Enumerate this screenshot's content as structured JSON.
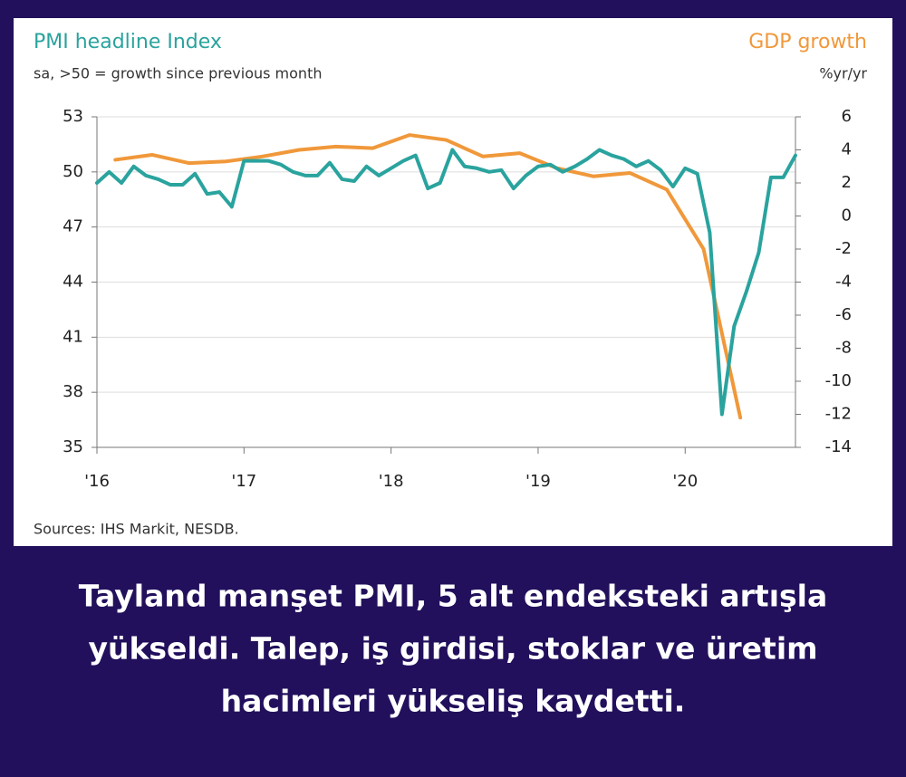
{
  "chart_data": {
    "type": "line",
    "title": "PMI headline Index",
    "subtitle": "sa, >50 = growth since previous month",
    "y2_title": "GDP growth",
    "y2_subtitle": "%yr/yr",
    "source": "Sources: IHS Markit, NESDB.",
    "xlim": [
      2016,
      2020.75
    ],
    "xticks": [
      {
        "value": 2016,
        "label": "'16"
      },
      {
        "value": 2017,
        "label": "'17"
      },
      {
        "value": 2018,
        "label": "'18"
      },
      {
        "value": 2019,
        "label": "'19"
      },
      {
        "value": 2020,
        "label": "'20"
      }
    ],
    "ylim": [
      35,
      53
    ],
    "yticks": [
      35,
      38,
      41,
      44,
      47,
      50,
      53
    ],
    "y2lim": [
      -14,
      6
    ],
    "y2ticks": [
      -14,
      -12,
      -10,
      -8,
      -6,
      -4,
      -2,
      0,
      2,
      4,
      6
    ],
    "grid": true,
    "series": [
      {
        "name": "PMI headline Index",
        "color": "#2aa39e",
        "x": [
          2016,
          2016.083,
          2016.167,
          2016.25,
          2016.333,
          2016.417,
          2016.5,
          2016.583,
          2016.667,
          2016.75,
          2016.833,
          2016.917,
          2017,
          2017.083,
          2017.167,
          2017.25,
          2017.333,
          2017.417,
          2017.5,
          2017.583,
          2017.667,
          2017.75,
          2017.833,
          2017.917,
          2018,
          2018.083,
          2018.167,
          2018.25,
          2018.333,
          2018.417,
          2018.5,
          2018.583,
          2018.667,
          2018.75,
          2018.833,
          2018.917,
          2019,
          2019.083,
          2019.167,
          2019.25,
          2019.333,
          2019.417,
          2019.5,
          2019.583,
          2019.667,
          2019.75,
          2019.833,
          2019.917,
          2020,
          2020.083,
          2020.167,
          2020.25,
          2020.333,
          2020.417,
          2020.5,
          2020.583,
          2020.667,
          2020.75
        ],
        "values": [
          49.4,
          50.0,
          49.4,
          50.3,
          49.8,
          49.6,
          49.3,
          49.3,
          49.9,
          48.8,
          48.9,
          48.1,
          50.6,
          50.6,
          50.6,
          50.4,
          50.0,
          49.8,
          49.8,
          50.5,
          49.6,
          49.5,
          50.3,
          49.8,
          50.2,
          50.6,
          50.9,
          49.1,
          49.4,
          51.2,
          50.3,
          50.2,
          50.0,
          50.1,
          49.1,
          49.8,
          50.3,
          50.4,
          50.0,
          50.3,
          50.7,
          51.2,
          50.9,
          50.7,
          50.3,
          50.6,
          50.1,
          49.2,
          50.2,
          49.9,
          46.7,
          36.8,
          41.6,
          43.5,
          45.6,
          49.7,
          49.7,
          50.9
        ]
      },
      {
        "name": "GDP growth",
        "color": "#f0983a",
        "axis": "y2",
        "x": [
          2016.125,
          2016.375,
          2016.625,
          2016.875,
          2017.125,
          2017.375,
          2017.625,
          2017.875,
          2018.125,
          2018.375,
          2018.625,
          2018.875,
          2019.125,
          2019.375,
          2019.625,
          2019.875,
          2020.125,
          2020.375
        ],
        "values": [
          3.4,
          3.7,
          3.2,
          3.3,
          3.6,
          4.0,
          4.2,
          4.1,
          4.9,
          4.6,
          3.6,
          3.8,
          2.9,
          2.4,
          2.6,
          1.6,
          -2.0,
          -12.2
        ]
      }
    ]
  },
  "caption": [
    "Tayland manşet PMI, 5 alt endeksteki artışla",
    "yükseldi. Talep, iş girdisi, stoklar ve üretim",
    "hacimleri yükseliş kaydetti."
  ]
}
